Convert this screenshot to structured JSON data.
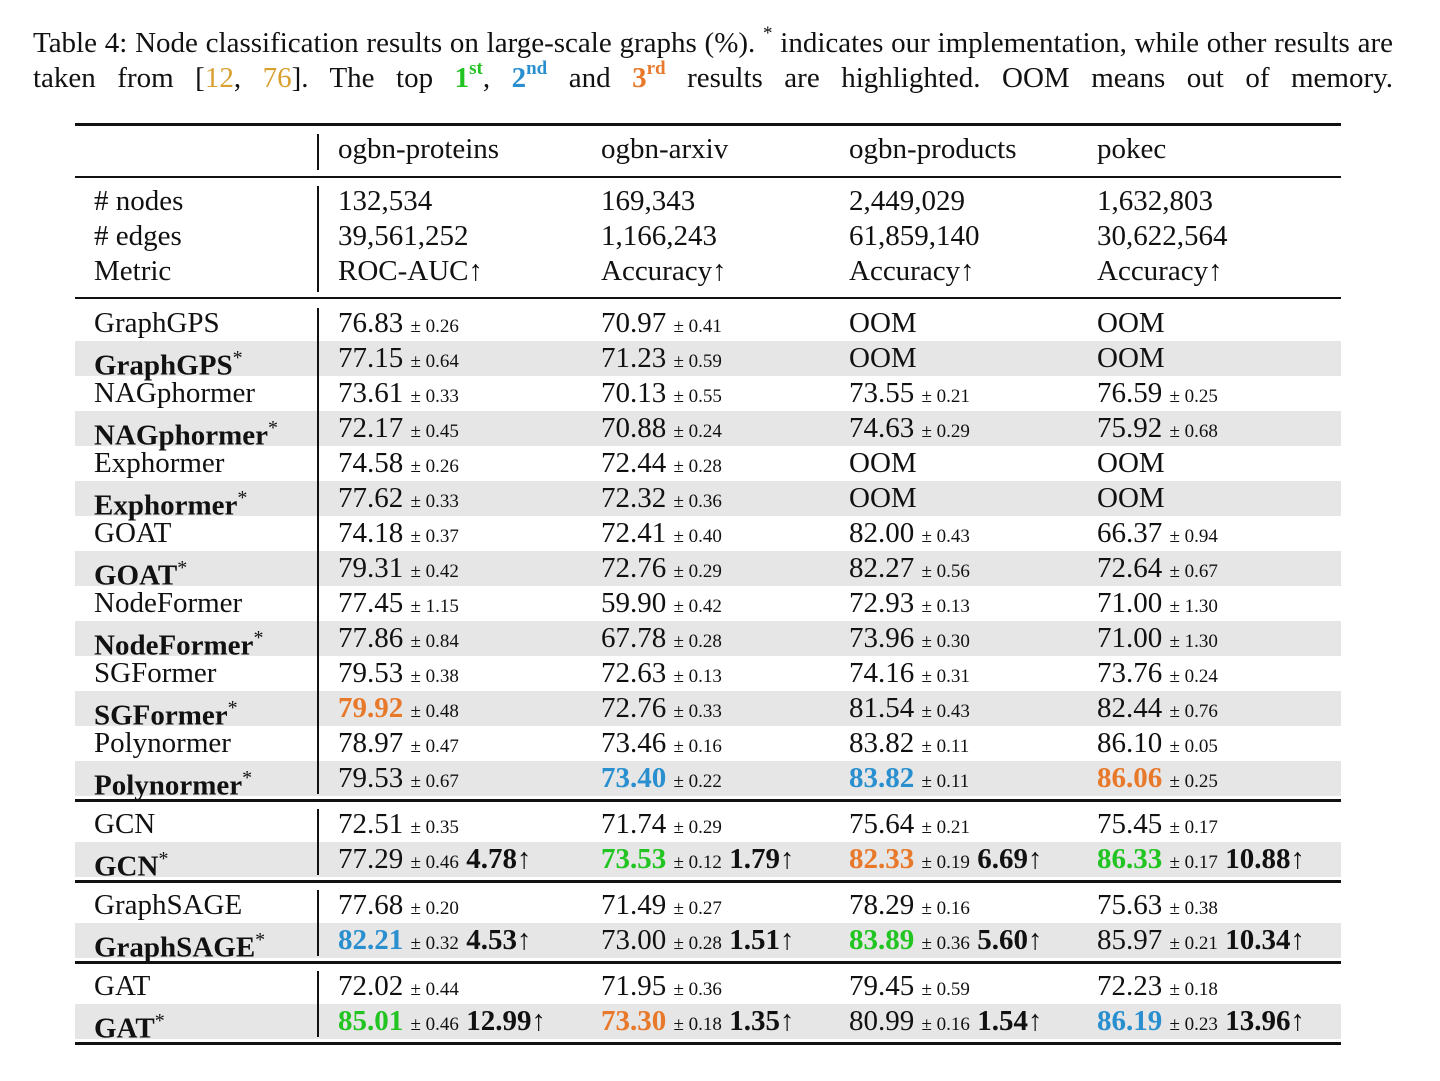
{
  "caption": {
    "p1": "Table 4: Node classification results on large-scale graphs (%). ",
    "star": "*",
    "p2": " indicates our implementation, while other results are taken from [",
    "cite1": "12",
    "sep": ", ",
    "cite2": "76",
    "p3": "]. The top ",
    "first": "1",
    "first_sup": "st",
    "comma": ", ",
    "second": "2",
    "second_sup": "nd",
    "and": " and ",
    "third": "3",
    "third_sup": "rd",
    "p4": " results are highlighted. OOM means out of memory."
  },
  "colors": {
    "first": "#22c422",
    "second": "#2a8fcf",
    "third": "#e8782a",
    "citation": "#d9a030",
    "shade": "#e6e6e6"
  },
  "columns": [
    "ogbn-proteins",
    "ogbn-arxiv",
    "ogbn-products",
    "pokec"
  ],
  "stats": [
    {
      "label": "# nodes",
      "values": [
        "132,534",
        "169,343",
        "2,449,029",
        "1,632,803"
      ]
    },
    {
      "label": "# edges",
      "values": [
        "39,561,252",
        "1,166,243",
        "61,859,140",
        "30,622,564"
      ]
    },
    {
      "label": "Metric",
      "values": [
        "ROC-AUC↑",
        "Accuracy↑",
        "Accuracy↑",
        "Accuracy↑"
      ]
    }
  ],
  "sections": [
    [
      {
        "model": "GraphGPS",
        "ours": false,
        "cells": [
          {
            "v": "76.83",
            "s": "± 0.26"
          },
          {
            "v": "70.97",
            "s": "± 0.41"
          },
          {
            "v": "OOM"
          },
          {
            "v": "OOM"
          }
        ]
      },
      {
        "model": "GraphGPS",
        "ours": true,
        "cells": [
          {
            "v": "77.15",
            "s": "± 0.64"
          },
          {
            "v": "71.23",
            "s": "± 0.59"
          },
          {
            "v": "OOM"
          },
          {
            "v": "OOM"
          }
        ]
      },
      {
        "model": "NAGphormer",
        "ours": false,
        "cells": [
          {
            "v": "73.61",
            "s": "± 0.33"
          },
          {
            "v": "70.13",
            "s": "± 0.55"
          },
          {
            "v": "73.55",
            "s": "± 0.21"
          },
          {
            "v": "76.59",
            "s": "± 0.25"
          }
        ]
      },
      {
        "model": "NAGphormer",
        "ours": true,
        "cells": [
          {
            "v": "72.17",
            "s": "± 0.45"
          },
          {
            "v": "70.88",
            "s": "± 0.24"
          },
          {
            "v": "74.63",
            "s": "± 0.29"
          },
          {
            "v": "75.92",
            "s": "± 0.68"
          }
        ]
      },
      {
        "model": "Exphormer",
        "ours": false,
        "cells": [
          {
            "v": "74.58",
            "s": "± 0.26"
          },
          {
            "v": "72.44",
            "s": "± 0.28"
          },
          {
            "v": "OOM"
          },
          {
            "v": "OOM"
          }
        ]
      },
      {
        "model": "Exphormer",
        "ours": true,
        "cells": [
          {
            "v": "77.62",
            "s": "± 0.33"
          },
          {
            "v": "72.32",
            "s": "± 0.36"
          },
          {
            "v": "OOM"
          },
          {
            "v": "OOM"
          }
        ]
      },
      {
        "model": "GOAT",
        "ours": false,
        "cells": [
          {
            "v": "74.18",
            "s": "± 0.37"
          },
          {
            "v": "72.41",
            "s": "± 0.40"
          },
          {
            "v": "82.00",
            "s": "± 0.43"
          },
          {
            "v": "66.37",
            "s": "± 0.94"
          }
        ]
      },
      {
        "model": "GOAT",
        "ours": true,
        "cells": [
          {
            "v": "79.31",
            "s": "± 0.42"
          },
          {
            "v": "72.76",
            "s": "± 0.29"
          },
          {
            "v": "82.27",
            "s": "± 0.56"
          },
          {
            "v": "72.64",
            "s": "± 0.67"
          }
        ]
      },
      {
        "model": "NodeFormer",
        "ours": false,
        "cells": [
          {
            "v": "77.45",
            "s": "± 1.15"
          },
          {
            "v": "59.90",
            "s": "± 0.42"
          },
          {
            "v": "72.93",
            "s": "± 0.13"
          },
          {
            "v": "71.00",
            "s": "± 1.30"
          }
        ]
      },
      {
        "model": "NodeFormer",
        "ours": true,
        "cells": [
          {
            "v": "77.86",
            "s": "± 0.84"
          },
          {
            "v": "67.78",
            "s": "± 0.28"
          },
          {
            "v": "73.96",
            "s": "± 0.30"
          },
          {
            "v": "71.00",
            "s": "± 1.30"
          }
        ]
      },
      {
        "model": "SGFormer",
        "ours": false,
        "cells": [
          {
            "v": "79.53",
            "s": "± 0.38"
          },
          {
            "v": "72.63",
            "s": "± 0.13"
          },
          {
            "v": "74.16",
            "s": "± 0.31"
          },
          {
            "v": "73.76",
            "s": "± 0.24"
          }
        ]
      },
      {
        "model": "SGFormer",
        "ours": true,
        "cells": [
          {
            "v": "79.92",
            "s": "± 0.48",
            "rank": "third"
          },
          {
            "v": "72.76",
            "s": "± 0.33"
          },
          {
            "v": "81.54",
            "s": "± 0.43"
          },
          {
            "v": "82.44",
            "s": "± 0.76"
          }
        ]
      },
      {
        "model": "Polynormer",
        "ours": false,
        "cells": [
          {
            "v": "78.97",
            "s": "± 0.47"
          },
          {
            "v": "73.46",
            "s": "± 0.16"
          },
          {
            "v": "83.82",
            "s": "± 0.11"
          },
          {
            "v": "86.10",
            "s": "± 0.05"
          }
        ]
      },
      {
        "model": "Polynormer",
        "ours": true,
        "cells": [
          {
            "v": "79.53",
            "s": "± 0.67"
          },
          {
            "v": "73.40",
            "s": "± 0.22",
            "rank": "second"
          },
          {
            "v": "83.82",
            "s": "± 0.11",
            "rank": "second"
          },
          {
            "v": "86.06",
            "s": "± 0.25",
            "rank": "third"
          }
        ]
      }
    ],
    [
      {
        "model": "GCN",
        "ours": false,
        "cells": [
          {
            "v": "72.51",
            "s": "± 0.35"
          },
          {
            "v": "71.74",
            "s": "± 0.29"
          },
          {
            "v": "75.64",
            "s": "± 0.21"
          },
          {
            "v": "75.45",
            "s": "± 0.17"
          }
        ]
      },
      {
        "model": "GCN",
        "ours": true,
        "cells": [
          {
            "v": "77.29",
            "s": "± 0.46",
            "imp": "4.78↑"
          },
          {
            "v": "73.53",
            "s": "± 0.12",
            "imp": "1.79↑",
            "rank": "first"
          },
          {
            "v": "82.33",
            "s": "± 0.19",
            "imp": "6.69↑",
            "rank": "third"
          },
          {
            "v": "86.33",
            "s": "± 0.17",
            "imp": "10.88↑",
            "rank": "first"
          }
        ]
      }
    ],
    [
      {
        "model": "GraphSAGE",
        "ours": false,
        "cells": [
          {
            "v": "77.68",
            "s": "± 0.20"
          },
          {
            "v": "71.49",
            "s": "± 0.27"
          },
          {
            "v": "78.29",
            "s": "± 0.16"
          },
          {
            "v": "75.63",
            "s": "± 0.38"
          }
        ]
      },
      {
        "model": "GraphSAGE",
        "ours": true,
        "cells": [
          {
            "v": "82.21",
            "s": "± 0.32",
            "imp": "4.53↑",
            "rank": "second"
          },
          {
            "v": "73.00",
            "s": "± 0.28",
            "imp": "1.51↑"
          },
          {
            "v": "83.89",
            "s": "± 0.36",
            "imp": "5.60↑",
            "rank": "first"
          },
          {
            "v": "85.97",
            "s": "± 0.21",
            "imp": "10.34↑"
          }
        ]
      }
    ],
    [
      {
        "model": "GAT",
        "ours": false,
        "cells": [
          {
            "v": "72.02",
            "s": "± 0.44"
          },
          {
            "v": "71.95",
            "s": "± 0.36"
          },
          {
            "v": "79.45",
            "s": "± 0.59"
          },
          {
            "v": "72.23",
            "s": "± 0.18"
          }
        ]
      },
      {
        "model": "GAT",
        "ours": true,
        "cells": [
          {
            "v": "85.01",
            "s": "± 0.46",
            "imp": "12.99↑",
            "rank": "first"
          },
          {
            "v": "73.30",
            "s": "± 0.18",
            "imp": "1.35↑",
            "rank": "third"
          },
          {
            "v": "80.99",
            "s": "± 0.16",
            "imp": "1.54↑"
          },
          {
            "v": "86.19",
            "s": "± 0.23",
            "imp": "13.96↑",
            "rank": "second"
          }
        ]
      }
    ]
  ]
}
